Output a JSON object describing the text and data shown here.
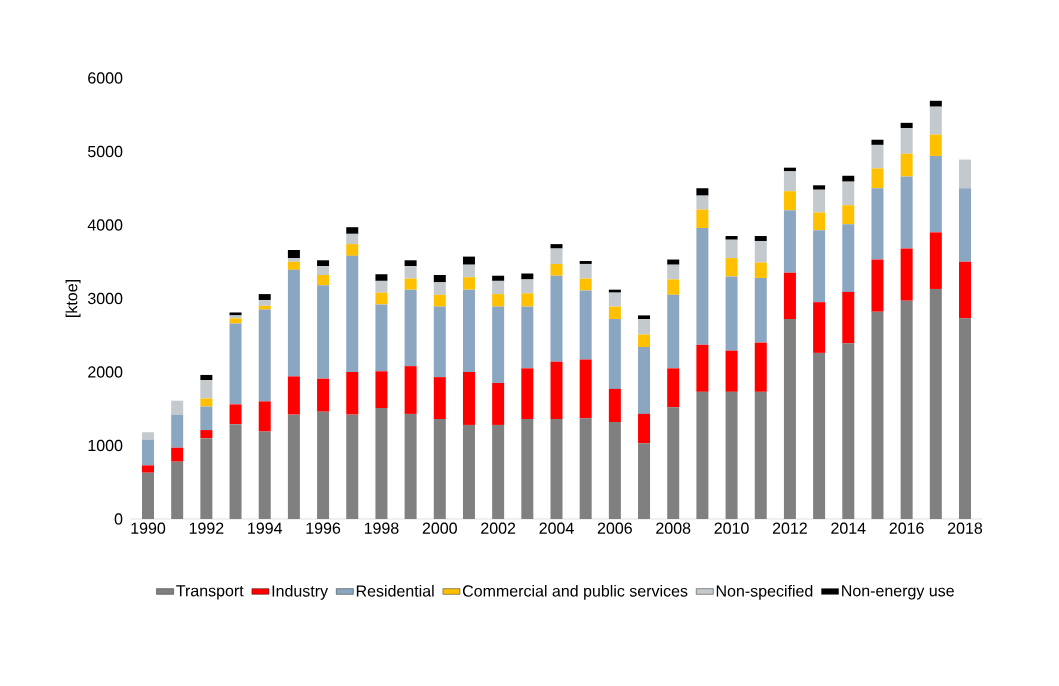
{
  "chart_data": {
    "type": "bar",
    "stacked": true,
    "ylabel": "[ktoe]",
    "categories": [
      "1990",
      null,
      "1992",
      null,
      "1994",
      null,
      "1996",
      null,
      "1998",
      null,
      "2000",
      null,
      "2002",
      null,
      "2004",
      null,
      "2006",
      null,
      "2008",
      null,
      "2010",
      null,
      "2012",
      null,
      "2014",
      null,
      "2016",
      null,
      "2018"
    ],
    "ylim": [
      0,
      6000
    ],
    "yticks": [
      0,
      1000,
      2000,
      3000,
      4000,
      5000,
      6000
    ],
    "grid": false,
    "legend": "bottom",
    "series": [
      {
        "name": "Transport",
        "color": "#808080",
        "values": [
          630,
          780,
          1100,
          1290,
          1190,
          1420,
          1460,
          1420,
          1510,
          1430,
          1360,
          1280,
          1280,
          1360,
          1360,
          1370,
          1320,
          1030,
          1520,
          1730,
          1730,
          1730,
          2720,
          2260,
          2390,
          2820,
          2970,
          3130,
          2730
        ]
      },
      {
        "name": "Industry",
        "color": "#ff0000",
        "values": [
          100,
          190,
          110,
          270,
          410,
          520,
          450,
          580,
          500,
          650,
          570,
          720,
          570,
          690,
          780,
          800,
          450,
          400,
          530,
          640,
          560,
          670,
          630,
          690,
          700,
          710,
          710,
          770,
          770
        ]
      },
      {
        "name": "Residential",
        "color": "#8ba6c1",
        "values": [
          350,
          450,
          320,
          1100,
          1250,
          1450,
          1270,
          1580,
          910,
          1040,
          960,
          1120,
          1040,
          840,
          1170,
          940,
          950,
          910,
          1000,
          1590,
          1010,
          880,
          850,
          980,
          920,
          970,
          980,
          1040,
          1000
        ]
      },
      {
        "name": "Commercial and public services",
        "color": "#ffc000",
        "values": [
          0,
          0,
          110,
          70,
          50,
          110,
          140,
          160,
          160,
          150,
          160,
          170,
          170,
          180,
          160,
          160,
          170,
          170,
          210,
          250,
          250,
          210,
          260,
          240,
          260,
          270,
          310,
          290,
          0
        ]
      },
      {
        "name": "Non-specified",
        "color": "#c3c9cc",
        "values": [
          100,
          190,
          250,
          40,
          80,
          50,
          120,
          140,
          160,
          170,
          170,
          170,
          180,
          190,
          210,
          200,
          190,
          210,
          200,
          190,
          250,
          290,
          270,
          310,
          320,
          320,
          350,
          380,
          390
        ]
      },
      {
        "name": "Non-energy use",
        "color": "#000000",
        "values": [
          0,
          0,
          70,
          40,
          80,
          110,
          80,
          90,
          90,
          80,
          100,
          110,
          70,
          80,
          60,
          40,
          40,
          50,
          70,
          100,
          50,
          70,
          50,
          60,
          80,
          70,
          70,
          80,
          0
        ]
      }
    ]
  }
}
